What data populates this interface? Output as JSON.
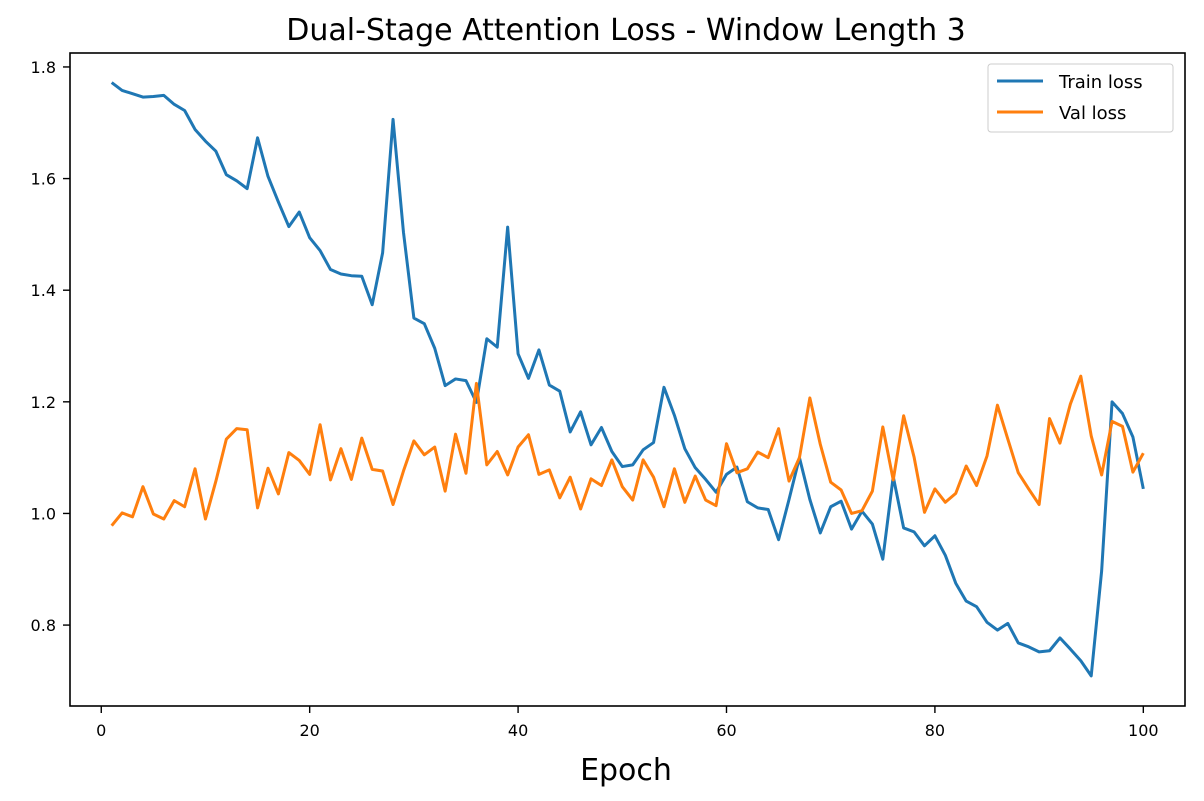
{
  "chart_data": {
    "type": "line",
    "title": "Dual-Stage Attention Loss - Window Length 3",
    "xlabel": "Epoch",
    "ylabel": "",
    "xlim": [
      -3,
      104
    ],
    "ylim": [
      0.655,
      1.825
    ],
    "xticks": [
      0,
      20,
      40,
      60,
      80,
      100
    ],
    "yticks": [
      0.8,
      1.0,
      1.2,
      1.4,
      1.6,
      1.8
    ],
    "xtick_labels": [
      "0",
      "20",
      "40",
      "60",
      "80",
      "100"
    ],
    "ytick_labels": [
      "0.8",
      "1.0",
      "1.2",
      "1.4",
      "1.6",
      "1.8"
    ],
    "legend_position": "top-right",
    "grid": false,
    "x": [
      1,
      2,
      3,
      4,
      5,
      6,
      7,
      8,
      9,
      10,
      11,
      12,
      13,
      14,
      15,
      16,
      17,
      18,
      19,
      20,
      21,
      22,
      23,
      24,
      25,
      26,
      27,
      28,
      29,
      30,
      31,
      32,
      33,
      34,
      35,
      36,
      37,
      38,
      39,
      40,
      41,
      42,
      43,
      44,
      45,
      46,
      47,
      48,
      49,
      50,
      51,
      52,
      53,
      54,
      55,
      56,
      57,
      58,
      59,
      60,
      61,
      62,
      63,
      64,
      65,
      66,
      67,
      68,
      69,
      70,
      71,
      72,
      73,
      74,
      75,
      76,
      77,
      78,
      79,
      80,
      81,
      82,
      83,
      84,
      85,
      86,
      87,
      88,
      89,
      90,
      91,
      92,
      93,
      94,
      95,
      96,
      97,
      98,
      99,
      100
    ],
    "series": [
      {
        "name": "Train loss",
        "color": "#1f77b4",
        "values": [
          1.772,
          1.758,
          1.752,
          1.746,
          1.747,
          1.749,
          1.733,
          1.722,
          1.688,
          1.667,
          1.649,
          1.607,
          1.596,
          1.582,
          1.673,
          1.604,
          1.558,
          1.514,
          1.54,
          1.494,
          1.471,
          1.437,
          1.429,
          1.426,
          1.425,
          1.374,
          1.467,
          1.706,
          1.504,
          1.35,
          1.34,
          1.296,
          1.229,
          1.241,
          1.238,
          1.199,
          1.313,
          1.298,
          1.513,
          1.286,
          1.242,
          1.293,
          1.23,
          1.219,
          1.146,
          1.182,
          1.123,
          1.154,
          1.111,
          1.084,
          1.087,
          1.114,
          1.127,
          1.226,
          1.176,
          1.116,
          1.082,
          1.061,
          1.038,
          1.07,
          1.083,
          1.021,
          1.01,
          1.007,
          0.953,
          1.025,
          1.1,
          1.025,
          0.965,
          1.012,
          1.022,
          0.972,
          1.004,
          0.981,
          0.918,
          1.066,
          0.974,
          0.967,
          0.942,
          0.96,
          0.925,
          0.875,
          0.843,
          0.833,
          0.805,
          0.791,
          0.803,
          0.768,
          0.761,
          0.752,
          0.754,
          0.777,
          0.757,
          0.736,
          0.709,
          0.897,
          1.2,
          1.179,
          1.137,
          1.044
        ]
      },
      {
        "name": "Val loss",
        "color": "#ff7f0e",
        "values": [
          0.978,
          1.001,
          0.994,
          1.048,
          0.999,
          0.99,
          1.023,
          1.012,
          1.08,
          0.99,
          1.058,
          1.133,
          1.152,
          1.15,
          1.01,
          1.081,
          1.035,
          1.109,
          1.095,
          1.07,
          1.159,
          1.06,
          1.116,
          1.061,
          1.135,
          1.079,
          1.076,
          1.016,
          1.076,
          1.13,
          1.105,
          1.119,
          1.04,
          1.142,
          1.072,
          1.233,
          1.087,
          1.111,
          1.069,
          1.119,
          1.141,
          1.07,
          1.078,
          1.028,
          1.065,
          1.008,
          1.062,
          1.05,
          1.096,
          1.048,
          1.024,
          1.096,
          1.065,
          1.012,
          1.08,
          1.02,
          1.067,
          1.024,
          1.014,
          1.125,
          1.073,
          1.08,
          1.11,
          1.1,
          1.152,
          1.058,
          1.1,
          1.207,
          1.124,
          1.056,
          1.042,
          1.0,
          1.005,
          1.04,
          1.155,
          1.06,
          1.175,
          1.101,
          1.002,
          1.044,
          1.02,
          1.036,
          1.085,
          1.05,
          1.103,
          1.194,
          1.133,
          1.073,
          1.044,
          1.016,
          1.17,
          1.126,
          1.196,
          1.246,
          1.139,
          1.069,
          1.165,
          1.156,
          1.074,
          1.108
        ]
      }
    ]
  }
}
